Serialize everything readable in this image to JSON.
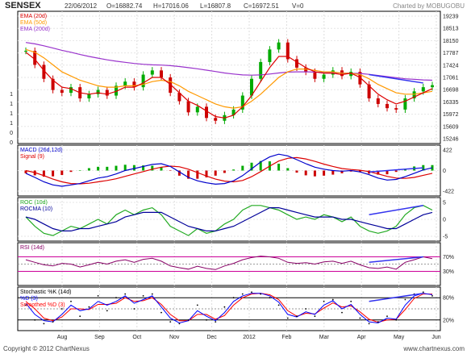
{
  "header": {
    "symbol": "SENSEX",
    "date": "22/06/2012",
    "open": "O=16882.74",
    "high": "H=17016.06",
    "low": "L=16807.8",
    "close": "C=16972.51",
    "volume": "V=0",
    "charted_by": "Charted by MOBUGOBU"
  },
  "footer": {
    "copyright": "Copyright © 2012 ChartNexus",
    "site": "www.chartnexus.com"
  },
  "colors": {
    "price_up": "#00aa00",
    "price_down": "#cc0000",
    "ema20": "#dd0000",
    "ema50": "#ff9900",
    "ema200": "#9933cc",
    "macd": "#0000cc",
    "signal": "#dd0000",
    "roc": "#22aa22",
    "rocma": "#000099",
    "rsi": "#880066",
    "stoch_k": "#000000",
    "stoch_d": "#0000ff",
    "stoch_sd": "#ff0000",
    "trend_arrow": "#3333ee"
  },
  "chart_data": [
    {
      "type": "line",
      "panel": "price",
      "legend": [
        "EMA (20d)",
        "EMA (50d)",
        "EMA (200d)"
      ],
      "yticks": [
        "19239",
        "18513",
        "18150",
        "17787",
        "17424",
        "17061",
        "16698",
        "16335",
        "15972",
        "15609",
        "15246"
      ],
      "left_ticks": [
        "1",
        "1",
        "1",
        "1",
        "0",
        "0"
      ],
      "ylim": [
        15000,
        19500
      ],
      "xticks": [
        "Aug",
        "Sep",
        "Oct",
        "Nov",
        "Dec",
        "2012",
        "Feb",
        "Mar",
        "Apr",
        "May",
        "Jun"
      ],
      "series": [
        {
          "name": "Close",
          "values": [
            18200,
            17700,
            17200,
            16800,
            16700,
            16900,
            16500,
            16650,
            16800,
            16600,
            16950,
            17100,
            16900,
            17350,
            17500,
            17250,
            16700,
            16400,
            16000,
            16200,
            15800,
            15700,
            15900,
            16100,
            16600,
            17200,
            17800,
            18250,
            18500,
            17900,
            17600,
            17450,
            17200,
            17350,
            17500,
            17300,
            17450,
            17000,
            16500,
            16300,
            16150,
            16100,
            16500,
            16750,
            16900,
            16972
          ]
        },
        {
          "name": "EMA (20d)",
          "values": [
            18150,
            17900,
            17500,
            17150,
            16900,
            16850,
            16700,
            16650,
            16700,
            16650,
            16750,
            16900,
            16900,
            17050,
            17250,
            17250,
            17000,
            16700,
            16400,
            16250,
            16050,
            15850,
            15800,
            15900,
            16200,
            16600,
            17100,
            17600,
            18000,
            18000,
            17800,
            17600,
            17450,
            17400,
            17400,
            17350,
            17400,
            17250,
            16950,
            16650,
            16450,
            16300,
            16400,
            16550,
            16700,
            16850
          ]
        },
        {
          "name": "EMA (50d)",
          "values": [
            18250,
            18150,
            17950,
            17700,
            17450,
            17300,
            17150,
            17050,
            16950,
            16900,
            16900,
            16950,
            16950,
            17000,
            17100,
            17150,
            17100,
            16950,
            16750,
            16600,
            16450,
            16300,
            16200,
            16150,
            16200,
            16400,
            16650,
            16950,
            17250,
            17450,
            17550,
            17550,
            17500,
            17450,
            17450,
            17400,
            17400,
            17350,
            17200,
            17000,
            16850,
            16700,
            16650,
            16650,
            16700,
            16750
          ]
        },
        {
          "name": "EMA (200d)",
          "values": [
            18500,
            18450,
            18380,
            18300,
            18220,
            18150,
            18070,
            18000,
            17940,
            17880,
            17830,
            17790,
            17750,
            17720,
            17700,
            17690,
            17670,
            17640,
            17600,
            17560,
            17510,
            17460,
            17410,
            17370,
            17340,
            17330,
            17340,
            17370,
            17410,
            17440,
            17450,
            17450,
            17440,
            17430,
            17420,
            17410,
            17400,
            17390,
            17360,
            17320,
            17280,
            17240,
            17200,
            17180,
            17160,
            17150
          ]
        }
      ]
    },
    {
      "type": "line",
      "panel": "macd",
      "legend": [
        "MACD (26d,12d)",
        "Signal (9)"
      ],
      "yticks": [
        "422",
        "0",
        "-422"
      ],
      "ylim": [
        -650,
        650
      ],
      "series": [
        {
          "name": "MACD (26d,12d)",
          "values": [
            -80,
            -200,
            -330,
            -420,
            -460,
            -420,
            -380,
            -300,
            -220,
            -180,
            -100,
            0,
            60,
            120,
            180,
            200,
            120,
            -40,
            -200,
            -300,
            -360,
            -400,
            -380,
            -300,
            -150,
            50,
            250,
            400,
            480,
            430,
            320,
            200,
            100,
            40,
            0,
            -20,
            0,
            -40,
            -120,
            -220,
            -280,
            -260,
            -180,
            -80,
            20,
            80
          ]
        },
        {
          "name": "Signal (9)",
          "values": [
            0,
            -60,
            -150,
            -250,
            -330,
            -380,
            -390,
            -370,
            -330,
            -290,
            -240,
            -170,
            -100,
            -30,
            40,
            100,
            130,
            110,
            40,
            -60,
            -160,
            -250,
            -310,
            -330,
            -290,
            -180,
            -30,
            130,
            280,
            360,
            380,
            340,
            270,
            190,
            120,
            60,
            30,
            10,
            -30,
            -100,
            -170,
            -220,
            -230,
            -200,
            -140,
            -80
          ]
        }
      ]
    },
    {
      "type": "line",
      "panel": "roc",
      "legend": [
        "ROC (10d)",
        "ROCMA (10)"
      ],
      "yticks": [
        "5",
        "0",
        "-5"
      ],
      "ylim": [
        -8,
        8
      ],
      "series": [
        {
          "name": "ROC (10d)",
          "values": [
            1,
            -3,
            -6,
            -7,
            -5,
            -3,
            -4,
            -2,
            0,
            -2,
            2,
            4,
            2,
            4,
            5,
            2,
            -3,
            -5,
            -7,
            -4,
            -6,
            -5,
            -2,
            0,
            4,
            6,
            6,
            5,
            4,
            2,
            0,
            1,
            0,
            2,
            1,
            -1,
            1,
            -3,
            -5,
            -6,
            -5,
            -3,
            2,
            5,
            6,
            4
          ]
        },
        {
          "name": "ROCMA (10)",
          "values": [
            1,
            0,
            -2,
            -4,
            -5,
            -5,
            -4,
            -4,
            -3,
            -2,
            -1,
            1,
            2,
            3,
            3,
            3,
            1,
            -1,
            -3,
            -4,
            -5,
            -5,
            -4,
            -3,
            -1,
            1,
            3,
            5,
            5,
            4,
            3,
            2,
            1,
            1,
            1,
            0,
            0,
            -1,
            -2,
            -3,
            -4,
            -4,
            -2,
            0,
            2,
            3
          ]
        }
      ]
    },
    {
      "type": "line",
      "panel": "rsi",
      "legend": [
        "RSI (14d)"
      ],
      "yticks": [
        "70%",
        "30%"
      ],
      "ylim": [
        0,
        100
      ],
      "series": [
        {
          "name": "RSI (14d)",
          "values": [
            62,
            55,
            48,
            45,
            52,
            50,
            42,
            48,
            55,
            50,
            58,
            62,
            55,
            63,
            66,
            58,
            45,
            40,
            36,
            44,
            38,
            35,
            45,
            52,
            62,
            68,
            72,
            70,
            66,
            55,
            52,
            54,
            50,
            56,
            58,
            52,
            58,
            48,
            40,
            38,
            42,
            36,
            55,
            62,
            70,
            65
          ]
        }
      ]
    },
    {
      "type": "line",
      "panel": "stochastic",
      "legend": [
        "Stochastic %K (14d)",
        "%D (3)",
        "Smoothed %D (3)"
      ],
      "yticks": [
        "80%",
        "20%"
      ],
      "ylim": [
        0,
        100
      ],
      "series": [
        {
          "name": "Stochastic %K (14d)",
          "values": [
            60,
            20,
            10,
            15,
            50,
            70,
            30,
            55,
            85,
            45,
            80,
            90,
            50,
            85,
            90,
            40,
            15,
            10,
            20,
            60,
            20,
            15,
            55,
            80,
            90,
            95,
            90,
            80,
            60,
            25,
            30,
            50,
            30,
            70,
            75,
            40,
            70,
            25,
            10,
            15,
            30,
            20,
            75,
            90,
            95,
            85
          ]
        },
        {
          "name": "%D (3)",
          "values": [
            65,
            35,
            18,
            15,
            35,
            60,
            45,
            50,
            70,
            60,
            70,
            85,
            65,
            75,
            85,
            55,
            25,
            12,
            18,
            45,
            30,
            18,
            40,
            70,
            85,
            92,
            92,
            85,
            68,
            35,
            28,
            42,
            35,
            60,
            72,
            50,
            62,
            35,
            15,
            12,
            25,
            22,
            60,
            85,
            92,
            88
          ]
        },
        {
          "name": "Smoothed %D (3)",
          "values": [
            70,
            50,
            25,
            18,
            28,
            50,
            50,
            48,
            62,
            62,
            65,
            80,
            70,
            72,
            80,
            62,
            35,
            18,
            18,
            35,
            35,
            22,
            32,
            60,
            80,
            90,
            92,
            88,
            75,
            45,
            30,
            38,
            36,
            52,
            66,
            55,
            58,
            42,
            22,
            14,
            20,
            22,
            48,
            78,
            90,
            90
          ]
        }
      ]
    }
  ]
}
